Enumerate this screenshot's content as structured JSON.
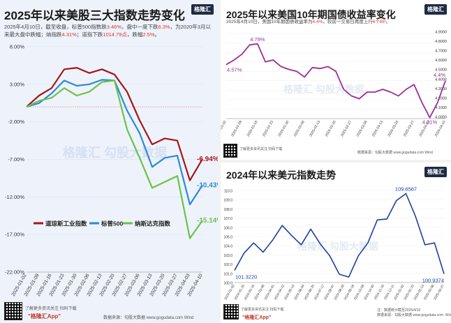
{
  "panel1": {
    "title": "2025年以来美股三大指数走势变化",
    "note_parts": [
      "2025年4月10日，截至收盘，标普500指数跌",
      "3.46%",
      "，盘中一度下跌",
      "6.3%",
      "，为2020年3月以来最大盘中跌幅；纳指跌",
      "4.31%",
      "；道指下跌",
      "1014.79点",
      "，跌幅",
      "2.5%",
      "。"
    ],
    "logo": "格隆汇",
    "watermark": "格隆汇  勾股大数据",
    "footer_left": "了解更多资讯关注 扫码下载",
    "footer_app": "\"格隆汇App\"",
    "footer_source": "数据来源：勾股大数据 www.gogudata.com  Wind"
  },
  "panel2": {
    "title": "2025年以来美国10年期国债收益率变化",
    "note_parts": [
      "2025年4月10日，美国10年期国债收益率为",
      "4.4%",
      "，较前一交易日再度上行",
      "6个BP",
      "。"
    ],
    "logo": "格隆汇",
    "watermark": "格隆汇  勾股大数据",
    "footer_left": "了解更多资讯关注 扫码下载",
    "footer_source": "数据来源：勾股大数据 www.gogudata.com  Wind"
  },
  "panel3": {
    "title": "2024年以来美元指数走势",
    "logo": "格隆汇",
    "watermark": "格隆汇  勾股大数据",
    "footer_left": "了解更多资讯关注 扫码下载",
    "footer_app": "\"格隆汇App\"",
    "footer_source": "注：数据统计截至2025/4/10\n数据来源：勾股大数据 www.gogudata.com  Wind"
  },
  "colors": {
    "dow": "#a8131b",
    "sp500": "#2b8ad8",
    "nasdaq": "#6cc24a",
    "treasury": "#9b2c9b",
    "dxy": "#1c3f9e",
    "note_highlight": "#e0322b"
  },
  "chart_data": [
    {
      "type": "line",
      "title": "2025年以来美股三大指数走势变化",
      "x": [
        "2025-01-02",
        "2025-01-09",
        "2025-01-16",
        "2025-01-23",
        "2025-01-30",
        "2025-02-06",
        "2025-02-13",
        "2025-02-20",
        "2025-02-27",
        "2025-03-06",
        "2025-03-13",
        "2025-03-20",
        "2025-03-27",
        "2025-04-03",
        "2025-04-10"
      ],
      "x_ticks": [
        "2025-01-02",
        "2025-01-09",
        "2025-01-16",
        "2025-01-23",
        "2025-01-30",
        "2025-02-06",
        "2025-02-13",
        "2025-02-20",
        "2025-02-27",
        "2025-03-06",
        "2025-03-13",
        "2025-03-20",
        "2025-03-27",
        "2025-04-03",
        "2025-04-10"
      ],
      "ylim": [
        -22,
        8
      ],
      "y_ticks": [
        "8.00%",
        "3.00%",
        "-2.00%",
        "-7.00%",
        "-12.00%",
        "-17.00%",
        "-22.00%"
      ],
      "y_tick_values": [
        8,
        3,
        -2,
        -7,
        -12,
        -17,
        -22
      ],
      "legend": "bottom-inside",
      "series": [
        {
          "name": "道琼斯工业指数",
          "values": [
            0,
            1.5,
            2.5,
            5.0,
            5.2,
            4.5,
            5.0,
            4.3,
            2.0,
            -1.8,
            -5.0,
            -4.2,
            -4.5,
            -9.8,
            -6.94
          ],
          "end_label": "-6.94%"
        },
        {
          "name": "标普500",
          "values": [
            0,
            0.5,
            1.8,
            3.5,
            2.8,
            3.0,
            3.6,
            3.5,
            -0.5,
            -3.5,
            -8.0,
            -6.8,
            -6.5,
            -13.0,
            -10.43
          ],
          "end_label": "-10.43%"
        },
        {
          "name": "纳斯达克指数",
          "values": [
            0,
            0.8,
            1.2,
            2.5,
            1.5,
            2.0,
            3.3,
            3.5,
            -3.0,
            -6.8,
            -10.8,
            -10.0,
            -9.2,
            -17.5,
            -15.14
          ],
          "end_label": "-15.14%"
        }
      ]
    },
    {
      "type": "line",
      "title": "2025年以来美国10年期国债收益率变化",
      "x": [
        "2025-01-02",
        "2025-01-06",
        "2025-01-09",
        "2025-01-14",
        "2025-01-16",
        "2025-01-21",
        "2025-01-23",
        "2025-01-28",
        "2025-01-30",
        "2025-02-04",
        "2025-02-06",
        "2025-02-11",
        "2025-02-13",
        "2025-02-18",
        "2025-02-20",
        "2025-02-25",
        "2025-02-27",
        "2025-03-04",
        "2025-03-06",
        "2025-03-11",
        "2025-03-13",
        "2025-03-18",
        "2025-03-20",
        "2025-03-25",
        "2025-03-27",
        "2025-04-01",
        "2025-04-03",
        "2025-04-07",
        "2025-04-10"
      ],
      "x_ticks": [
        "2025-01-02",
        "2025-01-09",
        "2025-01-16",
        "2025-01-23",
        "2025-01-30",
        "2025-02-06",
        "2025-02-13",
        "2025-02-20",
        "2025-02-27",
        "2025-03-06",
        "2025-03-13",
        "2025-03-20",
        "2025-03-27",
        "2025-04-03",
        "2025-04-10"
      ],
      "ylim": [
        4.0,
        4.9
      ],
      "y_ticks": [
        "4.9000",
        "4.8000",
        "4.7000",
        "4.6000",
        "4.5000",
        "4.4000",
        "4.3000",
        "4.2000",
        "4.1000",
        "4.0000"
      ],
      "y_tick_values": [
        4.9,
        4.8,
        4.7,
        4.6,
        4.5,
        4.4,
        4.3,
        4.2,
        4.1,
        4.0
      ],
      "series": [
        {
          "name": "",
          "values": [
            4.57,
            4.62,
            4.68,
            4.78,
            4.79,
            4.6,
            4.62,
            4.55,
            4.52,
            4.5,
            4.44,
            4.54,
            4.53,
            4.55,
            4.5,
            4.31,
            4.24,
            4.21,
            4.28,
            4.28,
            4.31,
            4.28,
            4.24,
            4.31,
            4.36,
            4.17,
            4.01,
            4.17,
            4.4
          ]
        }
      ],
      "annotations": [
        {
          "label": "4.57%",
          "index": 0
        },
        {
          "label": "4.79%",
          "index": 4
        },
        {
          "label": "4.4%",
          "index": 28
        },
        {
          "label": "4.01%",
          "index": 26
        }
      ]
    },
    {
      "type": "line",
      "title": "2024年以来美元指数走势",
      "x": [
        "2024-01-02",
        "2024-01-25",
        "2024-02-15",
        "2024-03-08",
        "2024-04-01",
        "2024-04-22",
        "2024-05-13",
        "2024-06-04",
        "2024-06-25",
        "2024-07-17",
        "2024-08-07",
        "2024-08-28",
        "2024-09-18",
        "2024-10-09",
        "2024-10-30",
        "2024-11-20",
        "2024-12-11",
        "2025-01-02",
        "2025-01-23",
        "2025-02-13",
        "2025-03-06",
        "2025-03-27",
        "2025-04-10"
      ],
      "x_ticks": [
        "2024-01-02",
        "2024-01-25",
        "2024-02-15",
        "2024-03-08",
        "2024-04-01",
        "2024-04-22",
        "2024-05-13",
        "2024-06-04",
        "2024-06-25",
        "2024-07-17",
        "2024-08-07",
        "2024-08-28",
        "2024-09-18",
        "2024-10-09",
        "2024-10-30",
        "2024-11-20",
        "2024-12-11",
        "2025-01-02",
        "2025-01-23",
        "2025-02-13",
        "2025-03-06",
        "2025-03-27"
      ],
      "ylim": [
        100,
        110
      ],
      "y_ticks": [
        "110.0",
        "109.0",
        "108.0",
        "107.0",
        "106.0",
        "105.0",
        "104.0",
        "103.0",
        "102.0",
        "101.0",
        "100.0"
      ],
      "y_tick_values": [
        110,
        109,
        108,
        107,
        106,
        105,
        104,
        103,
        102,
        101,
        100
      ],
      "series": [
        {
          "name": "",
          "values": [
            101.322,
            103.2,
            104.3,
            103.3,
            104.6,
            106.2,
            105.1,
            104.1,
            105.8,
            104.2,
            102.9,
            100.9,
            100.6,
            102.9,
            104.3,
            106.8,
            106.9,
            108.9,
            109.6567,
            107.2,
            104.1,
            104.3,
            100.9374
          ]
        }
      ],
      "annotations": [
        {
          "label": "101.3220",
          "index": 0
        },
        {
          "label": "109.6567",
          "index": 18
        },
        {
          "label": "100.9374",
          "index": 22
        }
      ]
    }
  ]
}
